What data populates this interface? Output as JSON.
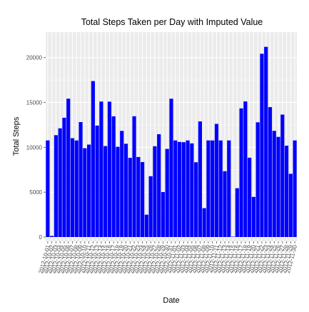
{
  "chart_data": {
    "type": "bar",
    "title": "Total Steps Taken per Day with Imputed Value",
    "xlabel": "Date",
    "ylabel": "Total Steps",
    "ylim": [
      0,
      22200
    ],
    "yticks": [
      0,
      5000,
      10000,
      15000,
      20000
    ],
    "ytick_labels": [
      "0",
      "5000",
      "10000",
      "15000",
      "20000"
    ],
    "grid": true,
    "legend": "none",
    "bar_color": "#0000ff",
    "panel_background": "#ebebeb",
    "gridline_color": "#ffffff",
    "categories": [
      "2012-10-01",
      "2012-10-02",
      "2012-10-03",
      "2012-10-04",
      "2012-10-05",
      "2012-10-06",
      "2012-10-07",
      "2012-10-08",
      "2012-10-09",
      "2012-10-10",
      "2012-10-11",
      "2012-10-12",
      "2012-10-13",
      "2012-10-14",
      "2012-10-15",
      "2012-10-16",
      "2012-10-17",
      "2012-10-18",
      "2012-10-19",
      "2012-10-20",
      "2012-10-21",
      "2012-10-22",
      "2012-10-23",
      "2012-10-24",
      "2012-10-25",
      "2012-10-26",
      "2012-10-27",
      "2012-10-28",
      "2012-10-29",
      "2012-10-30",
      "2012-10-31",
      "2012-11-01",
      "2012-11-02",
      "2012-11-03",
      "2012-11-04",
      "2012-11-05",
      "2012-11-06",
      "2012-11-07",
      "2012-11-08",
      "2012-11-09",
      "2012-11-10",
      "2012-11-11",
      "2012-11-12",
      "2012-11-13",
      "2012-11-14",
      "2012-11-15",
      "2012-11-16",
      "2012-11-17",
      "2012-11-18",
      "2012-11-19",
      "2012-11-20",
      "2012-11-21",
      "2012-11-22",
      "2012-11-23",
      "2012-11-24",
      "2012-11-25",
      "2012-11-26",
      "2012-11-27",
      "2012-11-28",
      "2012-11-29",
      "2012-11-30"
    ],
    "values": [
      10766,
      126,
      11352,
      12116,
      13294,
      15420,
      11015,
      10766,
      12811,
      9900,
      10304,
      17382,
      12426,
      15098,
      10139,
      15084,
      13452,
      10056,
      11829,
      10395,
      8821,
      13460,
      8918,
      8355,
      2492,
      6778,
      10119,
      11458,
      5018,
      9819,
      15414,
      10766,
      10600,
      10571,
      10766,
      10439,
      8334,
      12883,
      3219,
      10766,
      10766,
      12608,
      10765,
      7336,
      10766,
      41,
      5441,
      14339,
      15110,
      8841,
      4472,
      12787,
      20427,
      21194,
      14478,
      11834,
      11162,
      13646,
      10183,
      7047,
      10766
    ]
  }
}
